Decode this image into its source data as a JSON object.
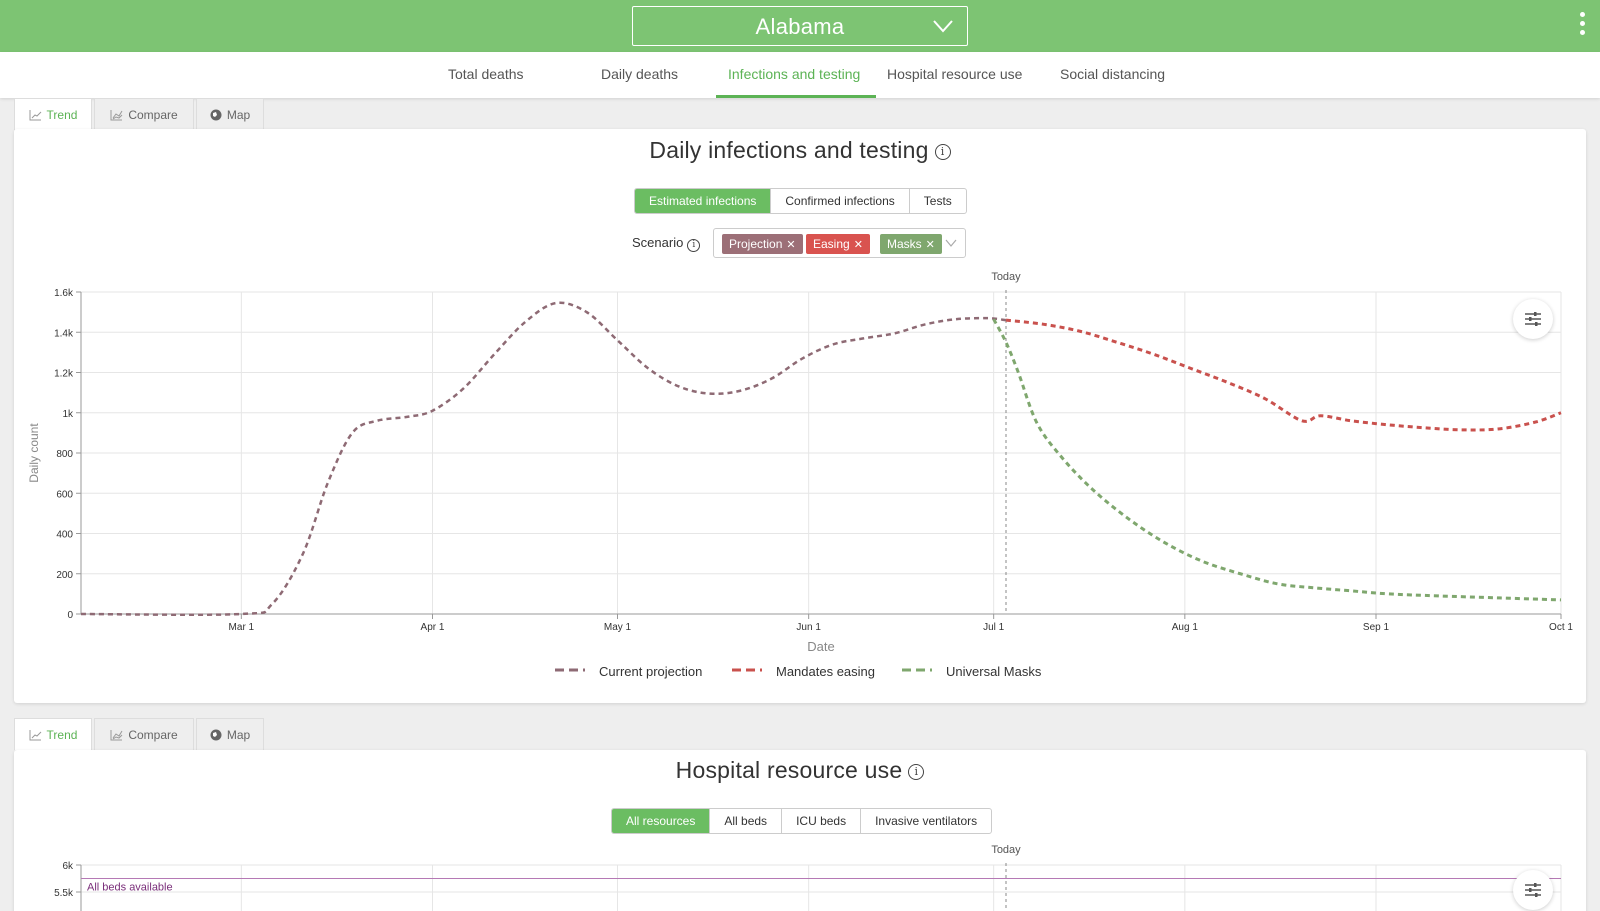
{
  "header": {
    "state": "Alabama",
    "chevron_icon": "chevron-down-icon",
    "menu_icon": "more-vertical-icon"
  },
  "nav": {
    "tabs": [
      {
        "label": "Total deaths"
      },
      {
        "label": "Daily deaths"
      },
      {
        "label": "Infections and testing"
      },
      {
        "label": "Hospital resource use"
      },
      {
        "label": "Social distancing"
      }
    ],
    "active": "Infections and testing"
  },
  "view_tabs": [
    {
      "label": "Trend",
      "icon": "line-chart-icon"
    },
    {
      "label": "Compare",
      "icon": "compare-chart-icon"
    },
    {
      "label": "Map",
      "icon": "globe-icon"
    }
  ],
  "infections_card": {
    "title": "Daily infections and testing",
    "info_icon": "i",
    "options": [
      "Estimated infections",
      "Confirmed infections",
      "Tests"
    ],
    "active_option": "Estimated infections",
    "scenario_label": "Scenario",
    "scenarios": [
      {
        "label": "Projection",
        "color": "#9c6f77"
      },
      {
        "label": "Easing",
        "color": "#d9534f"
      },
      {
        "label": "Masks",
        "color": "#7fa76e"
      }
    ]
  },
  "hospital_card": {
    "title": "Hospital resource use",
    "info_icon": "i",
    "options": [
      "All resources",
      "All beds",
      "ICU beds",
      "Invasive ventilators"
    ],
    "active_option": "All resources"
  },
  "chart_data": [
    {
      "type": "line",
      "title": "Daily infections and testing",
      "xlabel": "Date",
      "ylabel": "Daily count",
      "x_tick_labels": [
        "Mar 1",
        "Apr 1",
        "May 1",
        "Jun 1",
        "Jul 1",
        "Aug 1",
        "Sep 1",
        "Oct 1"
      ],
      "x_ticks_days": [
        0,
        31,
        61,
        92,
        122,
        153,
        184,
        214
      ],
      "y_tick_labels": [
        "0",
        "200",
        "400",
        "600",
        "800",
        "1k",
        "1.2k",
        "1.4k",
        "1.6k"
      ],
      "ylim": [
        0,
        1600
      ],
      "xlim_days": [
        -26,
        214
      ],
      "grid": true,
      "line_style": "dashed",
      "annotation": {
        "label": "Today",
        "day": 124
      },
      "legend_position": "bottom-center",
      "series": [
        {
          "name": "Current projection",
          "color": "#8e6a74",
          "points": [
            [
              -26,
              0
            ],
            [
              0,
              0
            ],
            [
              5,
              50
            ],
            [
              10,
              300
            ],
            [
              14,
              650
            ],
            [
              18,
              900
            ],
            [
              22,
              960
            ],
            [
              27,
              980
            ],
            [
              31,
              1010
            ],
            [
              36,
              1120
            ],
            [
              41,
              1290
            ],
            [
              46,
              1450
            ],
            [
              51,
              1545
            ],
            [
              56,
              1500
            ],
            [
              61,
              1360
            ],
            [
              66,
              1220
            ],
            [
              71,
              1130
            ],
            [
              76,
              1095
            ],
            [
              81,
              1110
            ],
            [
              86,
              1170
            ],
            [
              91,
              1270
            ],
            [
              96,
              1340
            ],
            [
              101,
              1370
            ],
            [
              106,
              1395
            ],
            [
              111,
              1440
            ],
            [
              116,
              1465
            ],
            [
              121,
              1470
            ],
            [
              124,
              1460
            ]
          ]
        },
        {
          "name": "Mandates easing",
          "color": "#c9514d",
          "points": [
            [
              124,
              1460
            ],
            [
              130,
              1440
            ],
            [
              136,
              1405
            ],
            [
              142,
              1350
            ],
            [
              148,
              1290
            ],
            [
              154,
              1220
            ],
            [
              160,
              1150
            ],
            [
              166,
              1070
            ],
            [
              172,
              960
            ],
            [
              175,
              985
            ],
            [
              180,
              960
            ],
            [
              186,
              940
            ],
            [
              192,
              925
            ],
            [
              198,
              915
            ],
            [
              204,
              920
            ],
            [
              210,
              955
            ],
            [
              214,
              1000
            ]
          ]
        },
        {
          "name": "Universal Masks",
          "color": "#7fa76e",
          "points": [
            [
              122,
              1465
            ],
            [
              124,
              1350
            ],
            [
              126,
              1200
            ],
            [
              129,
              950
            ],
            [
              133,
              780
            ],
            [
              138,
              620
            ],
            [
              144,
              470
            ],
            [
              150,
              350
            ],
            [
              156,
              260
            ],
            [
              162,
              200
            ],
            [
              168,
              150
            ],
            [
              174,
              130
            ],
            [
              180,
              115
            ],
            [
              186,
              100
            ],
            [
              194,
              90
            ],
            [
              204,
              80
            ],
            [
              214,
              70
            ]
          ]
        }
      ]
    },
    {
      "type": "line",
      "title": "Hospital resource use",
      "x_tick_labels": [],
      "y_tick_labels": [
        "5.5k",
        "6k"
      ],
      "annotation": {
        "label": "Today",
        "day": 124
      },
      "reference_lines": [
        {
          "label": "All beds available",
          "value": 5750,
          "color": "#b579b5"
        }
      ]
    }
  ]
}
